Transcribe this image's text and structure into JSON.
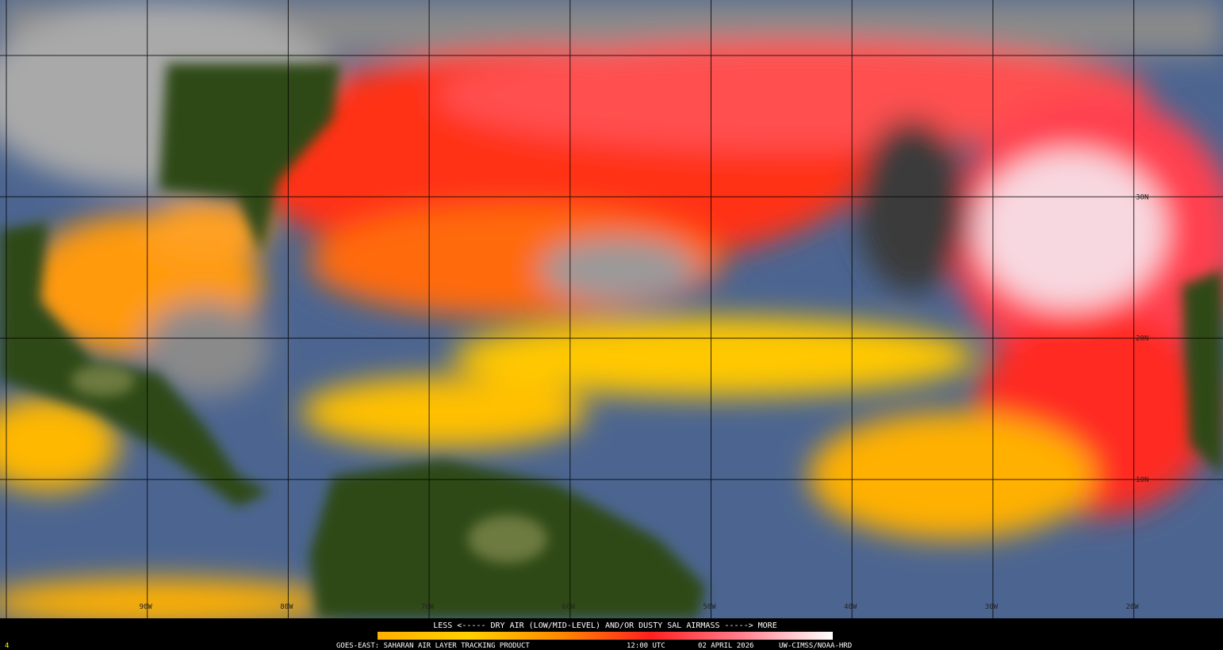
{
  "map": {
    "lon_labels": [
      "90W",
      "80W",
      "70W",
      "60W",
      "50W",
      "40W",
      "30W",
      "20W"
    ],
    "lat_labels": [
      "30N",
      "20N",
      "10N"
    ]
  },
  "legend": {
    "caption": "LESS <----- DRY AIR (LOW/MID-LEVEL) AND/OR DUSTY SAL AIRMASS -----> MORE",
    "product": "GOES-EAST: SAHARAN AIR LAYER TRACKING PRODUCT",
    "time": "12:00 UTC",
    "date": "02 APRIL 2026",
    "credit": "UW-CIMSS/NOAA-HRD",
    "frame": "4"
  }
}
